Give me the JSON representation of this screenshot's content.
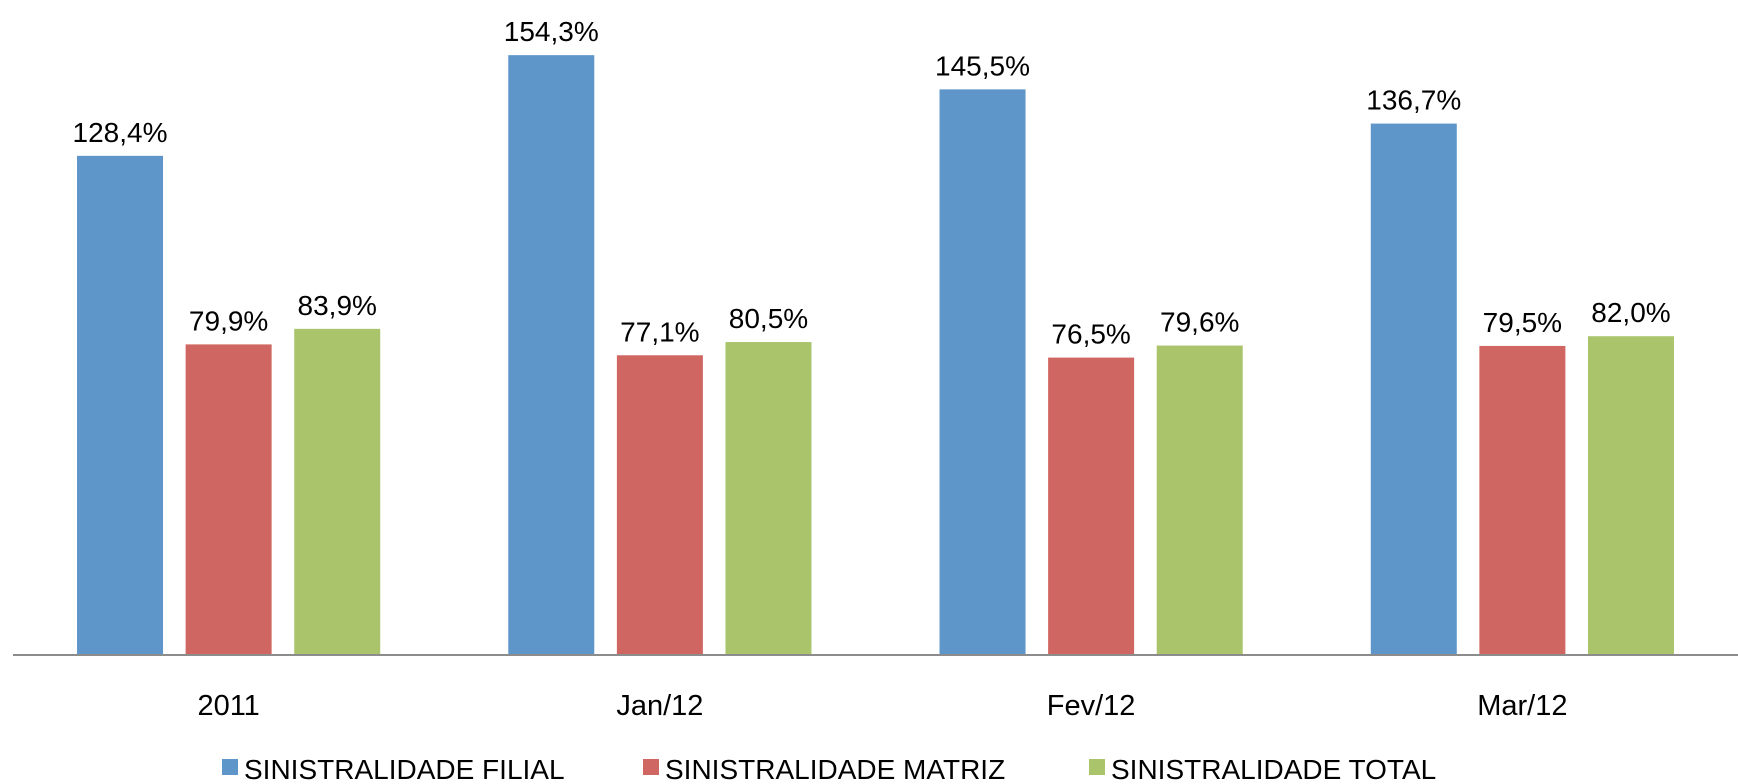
{
  "chart_data": {
    "type": "bar",
    "categories": [
      "2011",
      "Jan/12",
      "Fev/12",
      "Mar/12"
    ],
    "series": [
      {
        "name": "SINISTRALIDADE FILIAL",
        "color": "#5f96c9",
        "values": [
          128.4,
          154.3,
          145.5,
          136.7
        ],
        "value_labels": [
          "128,4%",
          "154,3%",
          "145,5%",
          "136,7%"
        ]
      },
      {
        "name": "SINISTRALIDADE MATRIZ",
        "color": "#cf6661",
        "values": [
          79.9,
          77.1,
          76.5,
          79.5
        ],
        "value_labels": [
          "79,9%",
          "77,1%",
          "76,5%",
          "79,5%"
        ]
      },
      {
        "name": "SINISTRALIDADE TOTAL",
        "color": "#aac46b",
        "values": [
          83.9,
          80.5,
          79.6,
          82.0
        ],
        "value_labels": [
          "83,9%",
          "80,5%",
          "79,6%",
          "82,0%"
        ]
      }
    ],
    "ylim": [
      0,
      160
    ],
    "legend": "bottom"
  }
}
